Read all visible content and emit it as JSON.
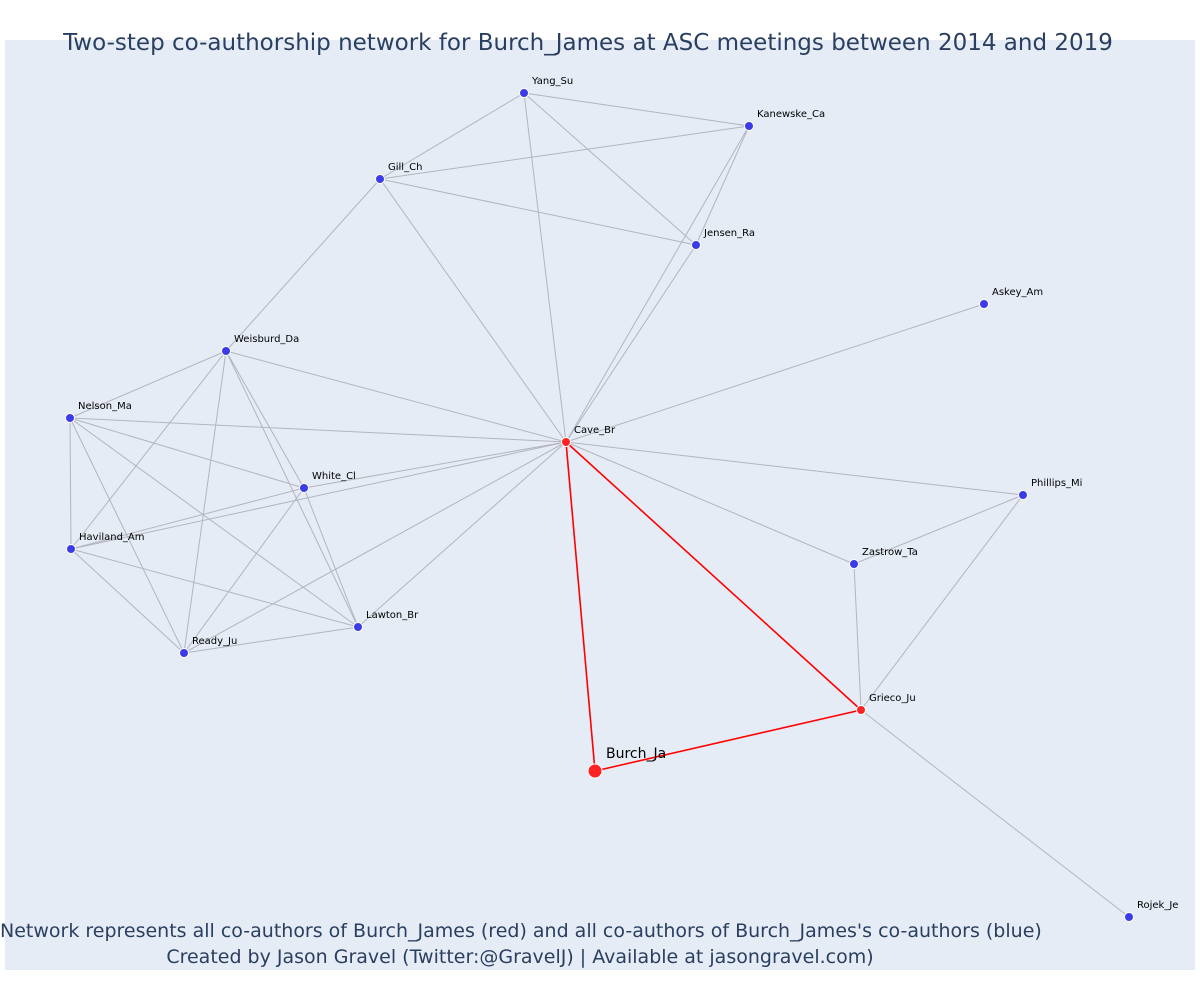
{
  "title": "Two-step co-authorship network for Burch_James at ASC meetings between 2014 and 2019",
  "caption": {
    "line1": "Network represents all co-authors of Burch_James (red) and all co-authors of Burch_James's co-authors (blue)",
    "line2": "Created by Jason Gravel (Twitter:@GravelJ) | Available at jasongravel.com)"
  },
  "colors": {
    "background": "#e5ecf6",
    "edge_default": "#b4b4be",
    "edge_focal": "#ff0000",
    "node_coauthor": "#ff2222",
    "node_second_step": "#3b3be8",
    "text": "#2a3f5f"
  },
  "nodes": [
    {
      "id": "Burch_Ja",
      "label": "Burch_Ja",
      "group": "focal"
    },
    {
      "id": "Cave_Br",
      "label": "Cave_Br",
      "group": "coauthor"
    },
    {
      "id": "Grieco_Ju",
      "label": "Grieco_Ju",
      "group": "coauthor"
    },
    {
      "id": "Yang_Su",
      "label": "Yang_Su",
      "group": "second"
    },
    {
      "id": "Kanewske_Ca",
      "label": "Kanewske_Ca",
      "group": "second"
    },
    {
      "id": "Gill_Ch",
      "label": "Gill_Ch",
      "group": "second"
    },
    {
      "id": "Jensen_Ra",
      "label": "Jensen_Ra",
      "group": "second"
    },
    {
      "id": "Askey_Am",
      "label": "Askey_Am",
      "group": "second"
    },
    {
      "id": "Weisburd_Da",
      "label": "Weisburd_Da",
      "group": "second"
    },
    {
      "id": "Nelson_Ma",
      "label": "Nelson_Ma",
      "group": "second"
    },
    {
      "id": "White_Cl",
      "label": "White_Cl",
      "group": "second"
    },
    {
      "id": "Haviland_Am",
      "label": "Haviland_Am",
      "group": "second"
    },
    {
      "id": "Lawton_Br",
      "label": "Lawton_Br",
      "group": "second"
    },
    {
      "id": "Ready_Ju",
      "label": "Ready_Ju",
      "group": "second"
    },
    {
      "id": "Phillips_Mi",
      "label": "Phillips_Mi",
      "group": "second"
    },
    {
      "id": "Zastrow_Ta",
      "label": "Zastrow_Ta",
      "group": "second"
    },
    {
      "id": "Rojek_Je",
      "label": "Rojek_Je",
      "group": "second"
    }
  ],
  "edges": [
    [
      "Burch_Ja",
      "Cave_Br",
      "focal"
    ],
    [
      "Burch_Ja",
      "Grieco_Ju",
      "focal"
    ],
    [
      "Cave_Br",
      "Grieco_Ju",
      "focal"
    ],
    [
      "Yang_Su",
      "Gill_Ch",
      "other"
    ],
    [
      "Yang_Su",
      "Kanewske_Ca",
      "other"
    ],
    [
      "Yang_Su",
      "Jensen_Ra",
      "other"
    ],
    [
      "Yang_Su",
      "Cave_Br",
      "other"
    ],
    [
      "Gill_Ch",
      "Kanewske_Ca",
      "other"
    ],
    [
      "Gill_Ch",
      "Jensen_Ra",
      "other"
    ],
    [
      "Gill_Ch",
      "Cave_Br",
      "other"
    ],
    [
      "Gill_Ch",
      "Weisburd_Da",
      "other"
    ],
    [
      "Kanewske_Ca",
      "Jensen_Ra",
      "other"
    ],
    [
      "Kanewske_Ca",
      "Cave_Br",
      "other"
    ],
    [
      "Jensen_Ra",
      "Cave_Br",
      "other"
    ],
    [
      "Askey_Am",
      "Cave_Br",
      "other"
    ],
    [
      "Weisburd_Da",
      "Nelson_Ma",
      "other"
    ],
    [
      "Weisburd_Da",
      "Cave_Br",
      "other"
    ],
    [
      "Weisburd_Da",
      "Haviland_Am",
      "other"
    ],
    [
      "Weisburd_Da",
      "Lawton_Br",
      "other"
    ],
    [
      "Weisburd_Da",
      "Ready_Ju",
      "other"
    ],
    [
      "Weisburd_Da",
      "White_Cl",
      "other"
    ],
    [
      "Nelson_Ma",
      "Cave_Br",
      "other"
    ],
    [
      "Nelson_Ma",
      "White_Cl",
      "other"
    ],
    [
      "Nelson_Ma",
      "Haviland_Am",
      "other"
    ],
    [
      "Nelson_Ma",
      "Lawton_Br",
      "other"
    ],
    [
      "Nelson_Ma",
      "Ready_Ju",
      "other"
    ],
    [
      "White_Cl",
      "Cave_Br",
      "other"
    ],
    [
      "White_Cl",
      "Haviland_Am",
      "other"
    ],
    [
      "White_Cl",
      "Lawton_Br",
      "other"
    ],
    [
      "White_Cl",
      "Ready_Ju",
      "other"
    ],
    [
      "Haviland_Am",
      "Cave_Br",
      "other"
    ],
    [
      "Haviland_Am",
      "Lawton_Br",
      "other"
    ],
    [
      "Haviland_Am",
      "Ready_Ju",
      "other"
    ],
    [
      "Ready_Ju",
      "Lawton_Br",
      "other"
    ],
    [
      "Ready_Ju",
      "Cave_Br",
      "other"
    ],
    [
      "Lawton_Br",
      "Cave_Br",
      "other"
    ],
    [
      "Cave_Br",
      "Phillips_Mi",
      "other"
    ],
    [
      "Cave_Br",
      "Zastrow_Ta",
      "other"
    ],
    [
      "Phillips_Mi",
      "Zastrow_Ta",
      "other"
    ],
    [
      "Phillips_Mi",
      "Grieco_Ju",
      "other"
    ],
    [
      "Zastrow_Ta",
      "Grieco_Ju",
      "other"
    ],
    [
      "Grieco_Ju",
      "Rojek_Je",
      "other"
    ]
  ]
}
